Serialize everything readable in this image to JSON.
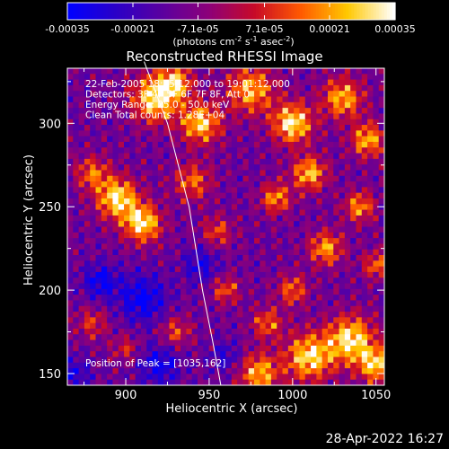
{
  "chart_data": {
    "type": "heatmap",
    "title": "Reconstructed RHESSI Image",
    "xlabel": "Heliocentric X (arcsec)",
    "ylabel": "Heliocentric Y (arcsec)",
    "xlim": [
      865,
      1055
    ],
    "ylim": [
      143,
      333
    ],
    "x_ticks": [
      900,
      950,
      1000,
      1050
    ],
    "y_ticks": [
      150,
      200,
      250,
      300
    ],
    "colorbar": {
      "min": -0.00035,
      "max": 0.00035,
      "ticks": [
        -0.00035,
        -0.00021,
        -7.1e-05,
        7.1e-05,
        0.00021,
        0.00035
      ],
      "tick_labels": [
        "-0.00035",
        "-0.00021",
        "-7.1e-05",
        "7.1e-05",
        "0.00021",
        "0.00035"
      ],
      "units": "(photons cm",
      "units_parts": [
        "(photons cm",
        "-2",
        " s",
        "-1",
        " asec",
        "-2",
        ")"
      ],
      "colors": [
        "#0000ff",
        "#2a00c8",
        "#5a00a0",
        "#8c007a",
        "#c80a28",
        "#ff5a00",
        "#ffc800",
        "#ffffff"
      ]
    },
    "annotations": [
      "22-Feb-2005 18:55:12.000 to 19:01:12.000",
      "Detectors: 3F 4F 5F 6F 7F 8F, Att 0",
      "Energy Range: 25.0 - 50.0 keV",
      "Clean     Total counts: 1.28E+04"
    ],
    "peak_label": "Position of Peak = [1035,162]",
    "peak_position": [
      1035,
      162
    ],
    "limb_arc": [
      [
        911,
        337
      ],
      [
        925,
        300
      ],
      [
        938,
        250
      ],
      [
        946,
        200
      ],
      [
        952,
        170
      ],
      [
        957,
        143
      ]
    ],
    "grid": false
  },
  "footer": {
    "date": "28-Apr-2022 16:27"
  }
}
